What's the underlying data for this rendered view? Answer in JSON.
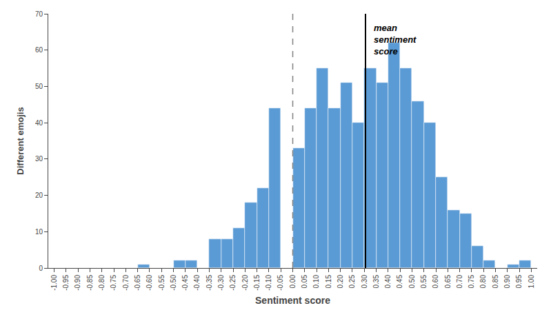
{
  "chart_data": {
    "type": "histogram",
    "bins": [
      -1.0,
      -0.95,
      -0.9,
      -0.85,
      -0.8,
      -0.75,
      -0.7,
      -0.65,
      -0.6,
      -0.55,
      -0.5,
      -0.45,
      -0.4,
      -0.35,
      -0.3,
      -0.25,
      -0.2,
      -0.15,
      -0.1,
      -0.05,
      0.0,
      0.05,
      0.1,
      0.15,
      0.2,
      0.25,
      0.3,
      0.35,
      0.4,
      0.45,
      0.5,
      0.55,
      0.6,
      0.65,
      0.7,
      0.75,
      0.8,
      0.85,
      0.9,
      0.95,
      1.0
    ],
    "values": [
      0,
      0,
      0,
      0,
      0,
      0,
      0,
      1,
      0,
      0,
      2,
      2,
      0,
      8,
      8,
      11,
      18,
      22,
      44,
      0,
      33,
      44,
      55,
      44,
      51,
      40,
      55,
      51,
      62,
      55,
      46,
      40,
      25,
      16,
      15,
      6,
      2,
      0,
      1,
      2
    ],
    "color": "#5B9BD5",
    "x_label": "Sentiment score",
    "y_label": "Different emojis",
    "xlim": [
      -1.025,
      1.025
    ],
    "ylim": [
      0,
      70
    ],
    "xticks": [
      {
        "value": -1.0,
        "label": "-1.00"
      },
      {
        "value": -0.95,
        "label": "-0.95"
      },
      {
        "value": -0.9,
        "label": "-0.90"
      },
      {
        "value": -0.85,
        "label": "-0.85"
      },
      {
        "value": -0.8,
        "label": "-0.80"
      },
      {
        "value": -0.75,
        "label": "-0.75"
      },
      {
        "value": -0.7,
        "label": "-0.70"
      },
      {
        "value": -0.65,
        "label": "-0.65"
      },
      {
        "value": -0.6,
        "label": "-0.60"
      },
      {
        "value": -0.55,
        "label": "-0.55"
      },
      {
        "value": -0.5,
        "label": "-0.50"
      },
      {
        "value": -0.45,
        "label": "-0.45"
      },
      {
        "value": -0.4,
        "label": "-0.40"
      },
      {
        "value": -0.35,
        "label": "-0.35"
      },
      {
        "value": -0.3,
        "label": "-0.30"
      },
      {
        "value": -0.25,
        "label": "-0.25"
      },
      {
        "value": -0.2,
        "label": "-0.20"
      },
      {
        "value": -0.15,
        "label": "-0.15"
      },
      {
        "value": -0.1,
        "label": "-0.10"
      },
      {
        "value": -0.05,
        "label": "-0.05"
      },
      {
        "value": 0.0,
        "label": "0.00"
      },
      {
        "value": 0.05,
        "label": "0.05"
      },
      {
        "value": 0.1,
        "label": "0.10"
      },
      {
        "value": 0.15,
        "label": "0.15"
      },
      {
        "value": 0.2,
        "label": "0.20"
      },
      {
        "value": 0.25,
        "label": "0.25"
      },
      {
        "value": 0.3,
        "label": "0.30"
      },
      {
        "value": 0.35,
        "label": "0.35"
      },
      {
        "value": 0.4,
        "label": "0.40"
      },
      {
        "value": 0.45,
        "label": "0.45"
      },
      {
        "value": 0.5,
        "label": "0.50"
      },
      {
        "value": 0.55,
        "label": "0.55"
      },
      {
        "value": 0.6,
        "label": "0.60"
      },
      {
        "value": 0.65,
        "label": "0.65"
      },
      {
        "value": 0.7,
        "label": "0.70"
      },
      {
        "value": 0.75,
        "label": "0.75"
      },
      {
        "value": 0.8,
        "label": "0.80"
      },
      {
        "value": 0.85,
        "label": "0.85"
      },
      {
        "value": 0.9,
        "label": "0.90"
      },
      {
        "value": 0.95,
        "label": "0.95"
      },
      {
        "value": 1.0,
        "label": "1.00"
      }
    ],
    "yticks": [
      0,
      10,
      20,
      30,
      40,
      50,
      60,
      70
    ],
    "grid": false,
    "vlines": [
      {
        "x": 0.0,
        "color": "gray",
        "line_style": "dashed"
      },
      {
        "x": 0.305,
        "color": "black",
        "line_style": "solid"
      }
    ],
    "annotations": [
      {
        "text": "mean\nsentiment\nscore",
        "x": 0.305,
        "y": 68
      }
    ]
  }
}
